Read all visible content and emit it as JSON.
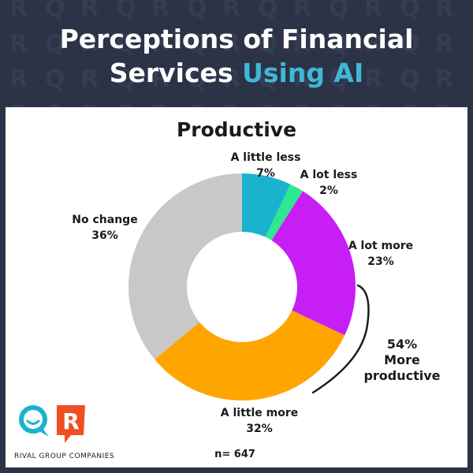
{
  "header": {
    "title_line1": "Perceptions of Financial",
    "title_line2_prefix": "Services ",
    "title_line2_accent": "Using AI"
  },
  "colors": {
    "background": "#2c3347",
    "accent": "#3fb8d6",
    "panel": "#ffffff"
  },
  "chart_data": {
    "type": "pie",
    "variant": "donut",
    "title": "Productive",
    "slices": [
      {
        "label": "A little less",
        "value": 7,
        "display": "7%",
        "color": "#1ab3cf"
      },
      {
        "label": "A lot less",
        "value": 2,
        "display": "2%",
        "color": "#2ee88f"
      },
      {
        "label": "A lot more",
        "value": 23,
        "display": "23%",
        "color": "#c61ef5"
      },
      {
        "label": "A little more",
        "value": 32,
        "display": "32%",
        "color": "#ffa500"
      },
      {
        "label": "No change",
        "value": 36,
        "display": "36%",
        "color": "#c8c8c8"
      }
    ],
    "annotation": {
      "value": "54%",
      "line2": "More",
      "line3": "productive"
    },
    "sample_size": "n= 647"
  },
  "footer": {
    "company": "RIVAL GROUP COMPANIES",
    "logo_letter": "R"
  }
}
